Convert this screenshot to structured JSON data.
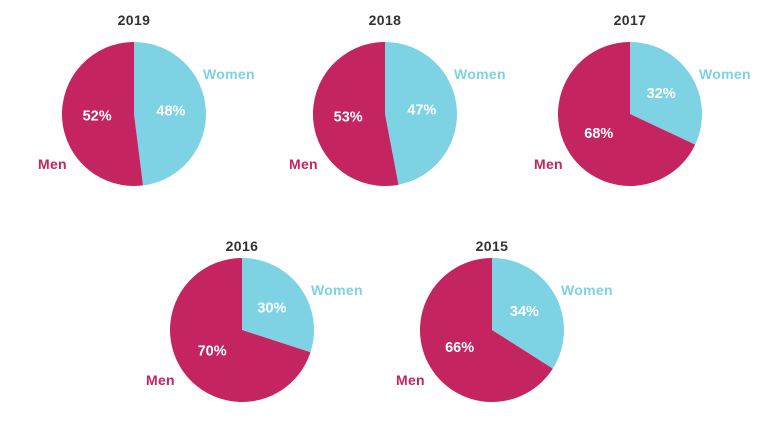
{
  "chart_data": {
    "type": "pie",
    "title": "",
    "unit": "%",
    "legend_position": "around-pie",
    "grid": false,
    "colors": {
      "men": "#c4245f",
      "women": "#7dd2e4",
      "title_text": "#333132",
      "value_text": "#ffffff",
      "background": "#ffffff"
    },
    "labels": {
      "men": "Men",
      "women": "Women"
    },
    "value_label_suffix": "%",
    "charts": [
      {
        "year": "2019",
        "men": 52,
        "women": 48
      },
      {
        "year": "2018",
        "men": 53,
        "women": 47
      },
      {
        "year": "2017",
        "men": 68,
        "women": 32
      },
      {
        "year": "2016",
        "men": 70,
        "women": 30
      },
      {
        "year": "2015",
        "men": 66,
        "women": 34
      }
    ]
  }
}
